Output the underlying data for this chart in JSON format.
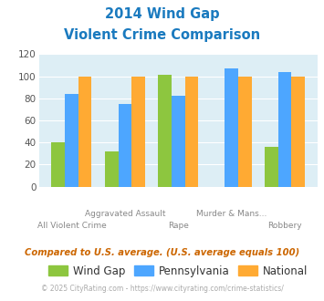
{
  "title_line1": "2014 Wind Gap",
  "title_line2": "Violent Crime Comparison",
  "categories": [
    "All Violent Crime",
    "Aggravated Assault",
    "Rape",
    "Murder & Mans...",
    "Robbery"
  ],
  "wind_gap": [
    40,
    32,
    101,
    0,
    36
  ],
  "pennsylvania": [
    84,
    75,
    82,
    107,
    104
  ],
  "national": [
    100,
    100,
    100,
    100,
    100
  ],
  "color_windgap": "#8dc63f",
  "color_pennsylvania": "#4da6ff",
  "color_national": "#ffaa33",
  "ylim": [
    0,
    120
  ],
  "yticks": [
    0,
    20,
    40,
    60,
    80,
    100,
    120
  ],
  "bg_color": "#ddeef5",
  "title_color": "#1a7abf",
  "xlabel_color": "#888888",
  "footer_text": "Compared to U.S. average. (U.S. average equals 100)",
  "copyright_text": "© 2025 CityRating.com - https://www.cityrating.com/crime-statistics/",
  "legend_labels": [
    "Wind Gap",
    "Pennsylvania",
    "National"
  ],
  "top_labels": [
    "",
    "Aggravated Assault",
    "",
    "Murder & Mans...",
    ""
  ],
  "bottom_labels": [
    "All Violent Crime",
    "",
    "Rape",
    "",
    "Robbery"
  ]
}
